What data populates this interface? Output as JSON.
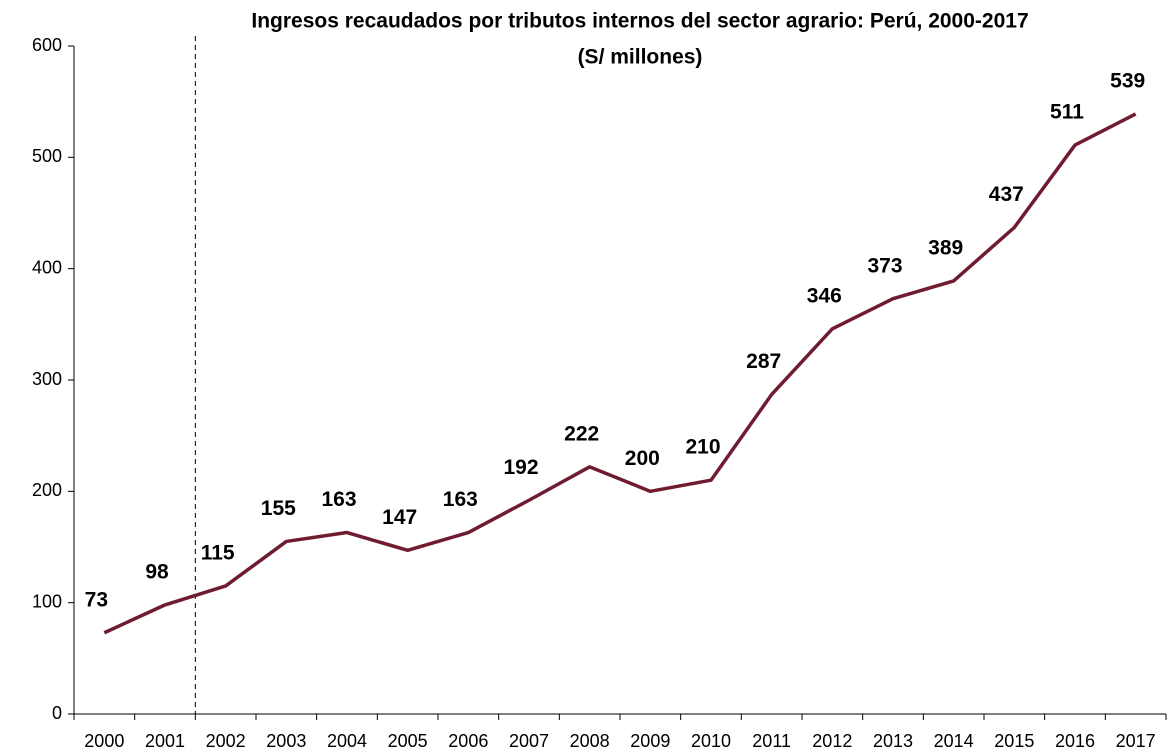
{
  "chart_data": {
    "type": "line",
    "title": "Ingresos recaudados por tributos internos del sector agrario: Perú, 2000-2017",
    "subtitle": "(S/ millones)",
    "categories": [
      "2000",
      "2001",
      "2002",
      "2003",
      "2004",
      "2005",
      "2006",
      "2007",
      "2008",
      "2009",
      "2010",
      "2011",
      "2012",
      "2013",
      "2014",
      "2015",
      "2016",
      "2017"
    ],
    "series": [
      {
        "color": "#701c30",
        "values": [
          73,
          98,
          115,
          155,
          163,
          147,
          163,
          192,
          222,
          200,
          210,
          287,
          346,
          373,
          389,
          437,
          511,
          539
        ]
      }
    ],
    "ylim": [
      0,
      600
    ],
    "yticks": [
      0,
      100,
      200,
      300,
      400,
      500,
      600
    ],
    "grid": false
  }
}
